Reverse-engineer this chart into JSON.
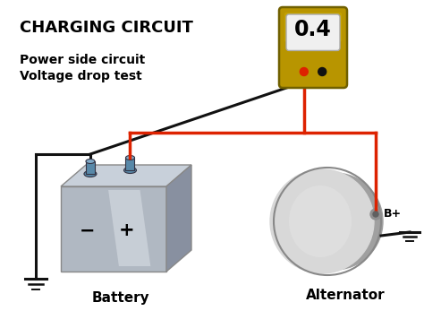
{
  "title": "CHARGING CIRCUIT",
  "subtitle_line1": "Power side circuit",
  "subtitle_line2": "Voltage drop test",
  "meter_value": "0.4",
  "battery_label": "Battery",
  "alternator_label": "Alternator",
  "bplus_label": "B+",
  "bg_color": "#ffffff",
  "title_fontsize": 13,
  "subtitle_fontsize": 10,
  "label_fontsize": 11,
  "wire_color_red": "#dd2200",
  "wire_color_black": "#111111",
  "meter_body_top": "#c9a800",
  "meter_body_main": "#b89500",
  "meter_screen_color": "#f0f0f0",
  "alt_back_color": "#a0a0a0",
  "alt_front_color": "#d8d8d8",
  "bat_front_color": "#b0b8c2",
  "bat_top_color": "#c8d0da",
  "bat_right_color": "#8890a0",
  "bat_term_color": "#5888a8",
  "lw_wire": 2.2
}
